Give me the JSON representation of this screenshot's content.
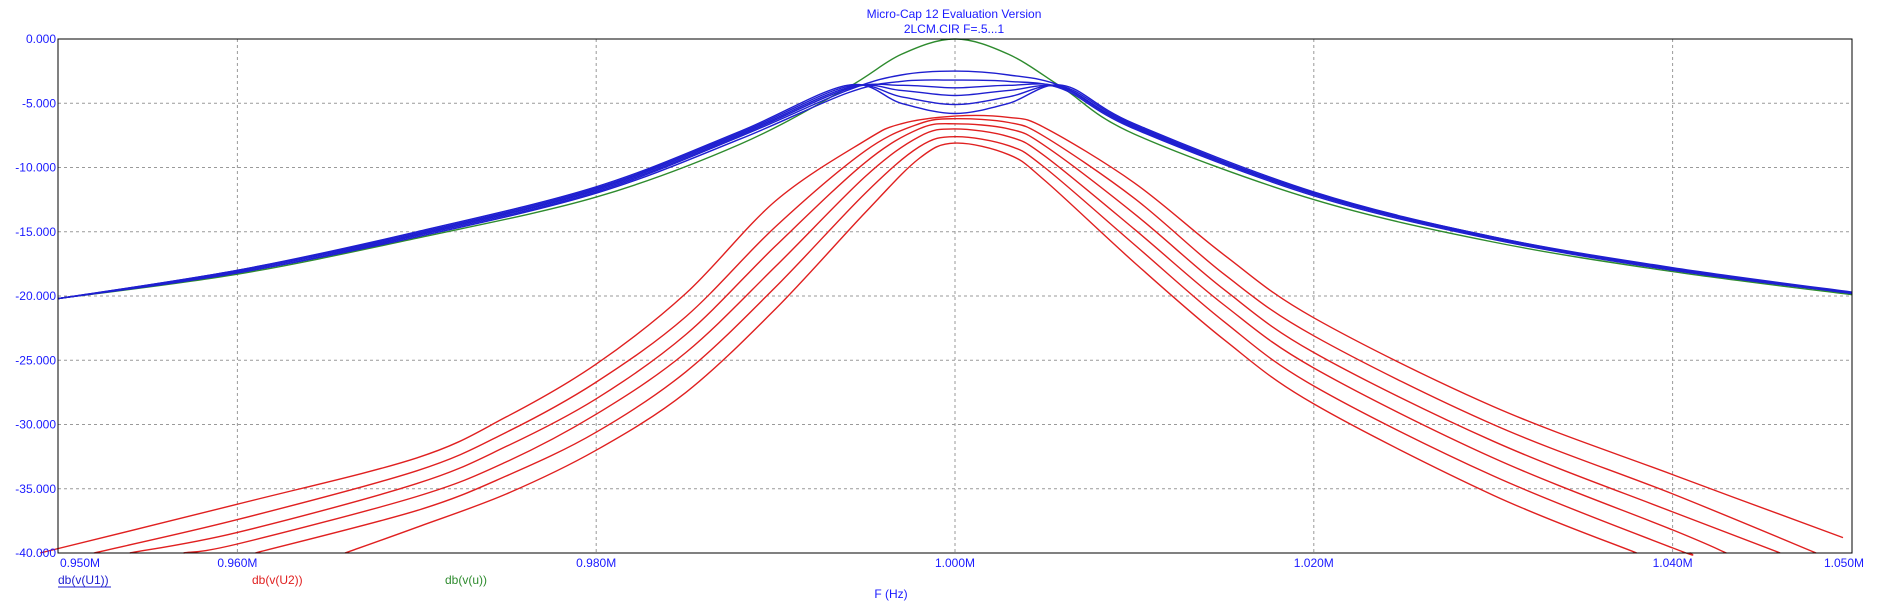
{
  "app": {
    "title": "Micro-Cap 12 Evaluation Version",
    "subtitle": "2LCM.CIR F=.5...1"
  },
  "chart_data": {
    "type": "line",
    "xlabel": "F (Hz)",
    "ylabel": "",
    "xlim": [
      0.95,
      1.05
    ],
    "ylim": [
      -40,
      0
    ],
    "x_unit": "MHz",
    "grid": true,
    "x_ticks": [
      {
        "value": 0.95,
        "label": "0.950M"
      },
      {
        "value": 0.96,
        "label": "0.960M"
      },
      {
        "value": 0.98,
        "label": "0.980M"
      },
      {
        "value": 1.0,
        "label": "1.000M"
      },
      {
        "value": 1.02,
        "label": "1.020M"
      },
      {
        "value": 1.04,
        "label": "1.040M"
      },
      {
        "value": 1.05,
        "label": "1.050M"
      }
    ],
    "y_ticks": [
      {
        "value": 0,
        "label": "0.000"
      },
      {
        "value": -5,
        "label": "-5.000"
      },
      {
        "value": -10,
        "label": "-10.000"
      },
      {
        "value": -15,
        "label": "-15.000"
      },
      {
        "value": -20,
        "label": "-20.000"
      },
      {
        "value": -25,
        "label": "-25.000"
      },
      {
        "value": -30,
        "label": "-30.000"
      },
      {
        "value": -35,
        "label": "-35.000"
      },
      {
        "value": -40,
        "label": "-40.000"
      }
    ],
    "legend": [
      {
        "label": "db(v(U1))",
        "color": "#1f1fd0"
      },
      {
        "label": "db(v(U2))",
        "color": "#e02020"
      },
      {
        "label": "db(v(u))",
        "color": "#2e8b2e"
      }
    ],
    "colors": {
      "u1": "#1f1fd0",
      "u2": "#e02020",
      "u": "#2e8b2e",
      "grid": "#9a9a9a",
      "axis": "#000000",
      "text": "#1a1aff"
    },
    "series": [
      {
        "group": "db(v(U2))",
        "points": [
          [
            0.949,
            -40
          ],
          [
            0.96,
            -36.2
          ],
          [
            0.97,
            -32.6
          ],
          [
            0.975,
            -29.4
          ],
          [
            0.98,
            -25.3
          ],
          [
            0.985,
            -19.8
          ],
          [
            0.99,
            -12.6
          ],
          [
            0.995,
            -7.9
          ],
          [
            0.997,
            -6.6
          ],
          [
            1.0,
            -6.0
          ],
          [
            1.003,
            -6.1
          ],
          [
            1.005,
            -6.9
          ],
          [
            1.01,
            -11.2
          ],
          [
            1.015,
            -16.8
          ],
          [
            1.02,
            -21.7
          ],
          [
            1.03,
            -28.6
          ],
          [
            1.04,
            -33.9
          ],
          [
            1.0495,
            -38.8
          ]
        ]
      },
      {
        "group": "db(v(U2))",
        "points": [
          [
            0.952,
            -40
          ],
          [
            0.96,
            -37.4
          ],
          [
            0.97,
            -33.6
          ],
          [
            0.975,
            -30.6
          ],
          [
            0.98,
            -26.7
          ],
          [
            0.985,
            -21.6
          ],
          [
            0.99,
            -14.6
          ],
          [
            0.995,
            -8.7
          ],
          [
            0.998,
            -6.6
          ],
          [
            1.0,
            -6.2
          ],
          [
            1.003,
            -6.5
          ],
          [
            1.005,
            -7.6
          ],
          [
            1.01,
            -12.4
          ],
          [
            1.015,
            -18.3
          ],
          [
            1.02,
            -23.1
          ],
          [
            1.03,
            -30.0
          ],
          [
            1.04,
            -35.4
          ],
          [
            1.048,
            -40
          ]
        ]
      },
      {
        "group": "db(v(U2))",
        "points": [
          [
            0.954,
            -40
          ],
          [
            0.96,
            -38.4
          ],
          [
            0.97,
            -34.6
          ],
          [
            0.975,
            -31.7
          ],
          [
            0.98,
            -28.0
          ],
          [
            0.985,
            -23.0
          ],
          [
            0.99,
            -16.1
          ],
          [
            0.995,
            -9.6
          ],
          [
            0.998,
            -7.0
          ],
          [
            1.0,
            -6.6
          ],
          [
            1.003,
            -7.0
          ],
          [
            1.005,
            -8.3
          ],
          [
            1.01,
            -13.6
          ],
          [
            1.015,
            -19.5
          ],
          [
            1.02,
            -24.4
          ],
          [
            1.03,
            -31.3
          ],
          [
            1.04,
            -36.8
          ],
          [
            1.046,
            -40
          ]
        ]
      },
      {
        "group": "db(v(U2))",
        "points": [
          [
            0.957,
            -40
          ],
          [
            0.96,
            -39.3
          ],
          [
            0.97,
            -35.6
          ],
          [
            0.975,
            -32.9
          ],
          [
            0.98,
            -29.2
          ],
          [
            0.985,
            -24.4
          ],
          [
            0.99,
            -17.7
          ],
          [
            0.995,
            -10.7
          ],
          [
            0.998,
            -7.6
          ],
          [
            1.0,
            -7.0
          ],
          [
            1.003,
            -7.6
          ],
          [
            1.005,
            -9.1
          ],
          [
            1.01,
            -14.8
          ],
          [
            1.015,
            -20.7
          ],
          [
            1.02,
            -25.6
          ],
          [
            1.03,
            -32.6
          ],
          [
            1.04,
            -38.2
          ],
          [
            1.043,
            -40
          ]
        ]
      },
      {
        "group": "db(v(U2))",
        "points": [
          [
            0.961,
            -40
          ],
          [
            0.97,
            -36.7
          ],
          [
            0.975,
            -34.0
          ],
          [
            0.98,
            -30.6
          ],
          [
            0.985,
            -25.9
          ],
          [
            0.99,
            -19.3
          ],
          [
            0.995,
            -12.0
          ],
          [
            0.998,
            -8.4
          ],
          [
            1.0,
            -7.6
          ],
          [
            1.003,
            -8.3
          ],
          [
            1.005,
            -10.0
          ],
          [
            1.01,
            -16.0
          ],
          [
            1.015,
            -22.0
          ],
          [
            1.02,
            -27.0
          ],
          [
            1.03,
            -34.0
          ],
          [
            1.04,
            -39.6
          ],
          [
            1.041,
            -40
          ]
        ]
      },
      {
        "group": "db(v(U2))",
        "points": [
          [
            0.966,
            -40
          ],
          [
            0.97,
            -38.0
          ],
          [
            0.975,
            -35.4
          ],
          [
            0.98,
            -32.0
          ],
          [
            0.985,
            -27.5
          ],
          [
            0.99,
            -21.0
          ],
          [
            0.995,
            -13.5
          ],
          [
            0.998,
            -9.3
          ],
          [
            1.0,
            -8.1
          ],
          [
            1.003,
            -9.0
          ],
          [
            1.005,
            -11.0
          ],
          [
            1.01,
            -17.4
          ],
          [
            1.015,
            -23.4
          ],
          [
            1.02,
            -28.4
          ],
          [
            1.03,
            -35.5
          ],
          [
            1.038,
            -40
          ]
        ]
      },
      {
        "group": "db(v(U1))",
        "points": [
          [
            0.95,
            -20.2
          ],
          [
            0.96,
            -18.2
          ],
          [
            0.97,
            -15.4
          ],
          [
            0.98,
            -12.0
          ],
          [
            0.988,
            -7.8
          ],
          [
            0.994,
            -4.2
          ],
          [
            0.997,
            -3.3
          ],
          [
            1.0,
            -3.2
          ],
          [
            1.003,
            -3.3
          ],
          [
            1.006,
            -3.9
          ],
          [
            1.01,
            -7.0
          ],
          [
            1.02,
            -12.2
          ],
          [
            1.03,
            -15.6
          ],
          [
            1.04,
            -18.0
          ],
          [
            1.05,
            -19.8
          ]
        ]
      },
      {
        "group": "db(v(U1))",
        "points": [
          [
            0.95,
            -20.2
          ],
          [
            0.96,
            -18.2
          ],
          [
            0.97,
            -15.3
          ],
          [
            0.98,
            -11.9
          ],
          [
            0.988,
            -7.6
          ],
          [
            0.994,
            -4.0
          ],
          [
            0.997,
            -2.8
          ],
          [
            1.0,
            -2.5
          ],
          [
            1.003,
            -2.8
          ],
          [
            1.006,
            -3.7
          ],
          [
            1.01,
            -6.8
          ],
          [
            1.02,
            -12.0
          ],
          [
            1.03,
            -15.5
          ],
          [
            1.04,
            -17.9
          ],
          [
            1.05,
            -19.8
          ]
        ]
      },
      {
        "group": "db(v(U1))",
        "points": [
          [
            0.95,
            -20.2
          ],
          [
            0.96,
            -18.1
          ],
          [
            0.97,
            -15.2
          ],
          [
            0.98,
            -11.8
          ],
          [
            0.988,
            -7.5
          ],
          [
            0.994,
            -3.9
          ],
          [
            0.997,
            -3.6
          ],
          [
            1.0,
            -3.8
          ],
          [
            1.003,
            -3.6
          ],
          [
            1.006,
            -3.8
          ],
          [
            1.01,
            -6.9
          ],
          [
            1.02,
            -12.1
          ],
          [
            1.03,
            -15.5
          ],
          [
            1.04,
            -17.9
          ],
          [
            1.05,
            -19.8
          ]
        ]
      },
      {
        "group": "db(v(U1))",
        "points": [
          [
            0.95,
            -20.2
          ],
          [
            0.96,
            -18.1
          ],
          [
            0.97,
            -15.2
          ],
          [
            0.98,
            -11.7
          ],
          [
            0.988,
            -7.4
          ],
          [
            0.994,
            -3.8
          ],
          [
            0.997,
            -4.0
          ],
          [
            1.0,
            -4.4
          ],
          [
            1.003,
            -4.0
          ],
          [
            1.006,
            -3.8
          ],
          [
            1.01,
            -6.8
          ],
          [
            1.02,
            -12.0
          ],
          [
            1.03,
            -15.5
          ],
          [
            1.04,
            -17.9
          ],
          [
            1.05,
            -19.8
          ]
        ]
      },
      {
        "group": "db(v(U1))",
        "points": [
          [
            0.95,
            -20.2
          ],
          [
            0.96,
            -18.0
          ],
          [
            0.97,
            -15.1
          ],
          [
            0.98,
            -11.6
          ],
          [
            0.988,
            -7.3
          ],
          [
            0.994,
            -3.7
          ],
          [
            0.997,
            -4.5
          ],
          [
            1.0,
            -5.1
          ],
          [
            1.003,
            -4.5
          ],
          [
            1.006,
            -3.7
          ],
          [
            1.01,
            -6.7
          ],
          [
            1.02,
            -12.0
          ],
          [
            1.03,
            -15.4
          ],
          [
            1.04,
            -17.9
          ],
          [
            1.05,
            -19.8
          ]
        ]
      },
      {
        "group": "db(v(U1))",
        "points": [
          [
            0.95,
            -20.2
          ],
          [
            0.96,
            -18.0
          ],
          [
            0.97,
            -15.0
          ],
          [
            0.98,
            -11.5
          ],
          [
            0.988,
            -7.2
          ],
          [
            0.994,
            -3.6
          ],
          [
            0.997,
            -5.0
          ],
          [
            1.0,
            -5.8
          ],
          [
            1.003,
            -5.0
          ],
          [
            1.006,
            -3.6
          ],
          [
            1.01,
            -6.6
          ],
          [
            1.02,
            -11.9
          ],
          [
            1.03,
            -15.4
          ],
          [
            1.04,
            -17.8
          ],
          [
            1.05,
            -19.7
          ]
        ]
      },
      {
        "group": "db(v(u))",
        "points": [
          [
            0.95,
            -20.2
          ],
          [
            0.96,
            -18.3
          ],
          [
            0.97,
            -15.5
          ],
          [
            0.98,
            -12.3
          ],
          [
            0.988,
            -8.2
          ],
          [
            0.994,
            -3.8
          ],
          [
            0.997,
            -1.2
          ],
          [
            1.0,
            0.0
          ],
          [
            1.003,
            -1.2
          ],
          [
            1.006,
            -3.8
          ],
          [
            1.01,
            -7.4
          ],
          [
            1.02,
            -12.5
          ],
          [
            1.03,
            -15.8
          ],
          [
            1.04,
            -18.1
          ],
          [
            1.05,
            -19.9
          ]
        ]
      }
    ]
  }
}
